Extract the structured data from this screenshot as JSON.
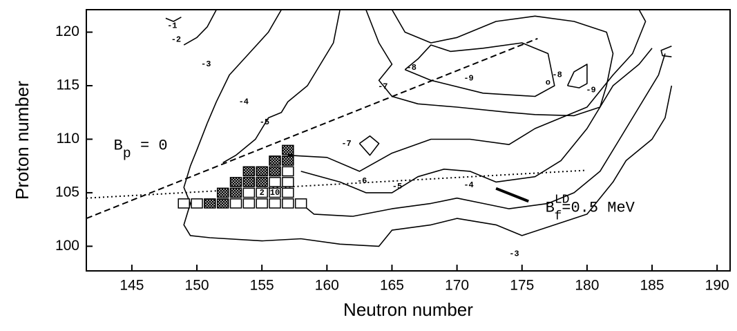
{
  "chart_data": {
    "type": "contour",
    "xlabel": "Neutron number",
    "ylabel": "Proton number",
    "xlim": [
      141.5,
      191
    ],
    "ylim": [
      97.7,
      122.1
    ],
    "xticks": [
      145,
      150,
      155,
      160,
      165,
      170,
      175,
      180,
      185,
      190
    ],
    "yticks": [
      100,
      105,
      110,
      115,
      120
    ],
    "contours": [
      {
        "x": [
          147.6,
          148.2,
          148.8
        ],
        "y": [
          121.3,
          121,
          121.4
        ]
      },
      {
        "x": [
          151.5,
          150.8,
          150,
          149
        ],
        "y": [
          122.1,
          120.5,
          119.5,
          118.8
        ]
      },
      {
        "x": [
          156.5,
          155.5,
          154,
          152.5,
          151.5,
          150.8
        ],
        "y": [
          122.1,
          120,
          118,
          116,
          113.5,
          111.5
        ]
      },
      {
        "x": [
          150.8,
          150,
          149.5,
          149,
          149.5,
          149,
          149.5,
          151,
          155,
          158,
          161,
          164,
          165,
          168,
          170,
          173,
          175,
          177,
          180,
          182,
          183,
          185,
          186,
          186.5
        ],
        "y": [
          111.5,
          109,
          107.5,
          105.5,
          104,
          102,
          101,
          100.8,
          100.5,
          100.7,
          100.2,
          100,
          101.5,
          102,
          102.6,
          102,
          101,
          101.8,
          103,
          106,
          108,
          110,
          112,
          115
        ]
      },
      {
        "x": [
          161,
          160.5,
          159.5,
          158.5,
          157,
          156.5,
          155.5,
          154.5,
          153,
          152
        ],
        "y": [
          122.1,
          119,
          117,
          115,
          113.5,
          112.5,
          112,
          110,
          108.5,
          107.8
        ]
      },
      {
        "x": [
          158,
          159,
          162,
          165,
          168,
          170,
          172,
          174,
          177,
          179,
          181,
          182.5,
          184,
          185.5,
          186
        ],
        "y": [
          104,
          103,
          102.8,
          103.5,
          104,
          104.5,
          104,
          103.5,
          104,
          105,
          107,
          110,
          113,
          116,
          118
        ]
      },
      {
        "x": [
          158,
          161,
          163,
          165,
          167,
          169,
          171,
          173,
          176,
          178,
          180,
          181,
          182,
          184,
          185
        ],
        "y": [
          107,
          106,
          105,
          105,
          106.5,
          107.2,
          107,
          106,
          106.5,
          108,
          111,
          113,
          115,
          117,
          118.5
        ]
      },
      {
        "x": [
          157,
          160,
          162.5,
          165,
          168,
          171,
          174,
          176,
          178,
          180,
          182,
          183.5,
          184.5,
          184
        ],
        "y": [
          108.5,
          108.3,
          107,
          108.7,
          110,
          110,
          109.5,
          111,
          112,
          113,
          116,
          118,
          121,
          122.1
        ]
      },
      {
        "x": [
          162.5,
          163.3,
          164,
          163.3,
          162.5
        ],
        "y": [
          109.6,
          110.3,
          109.6,
          108.5,
          109.6
        ]
      },
      {
        "x": [
          163,
          164,
          165,
          164,
          165,
          167,
          170,
          174,
          176,
          179,
          181,
          181.5,
          182,
          181.5,
          179,
          176,
          173,
          170,
          168,
          166,
          165
        ],
        "y": [
          122.1,
          119,
          117,
          115.5,
          114,
          113.3,
          113,
          112.5,
          112.3,
          112.2,
          113,
          115,
          118,
          120,
          121,
          121.5,
          121,
          119.5,
          119,
          120,
          122.1
        ]
      },
      {
        "x": [
          166,
          167,
          168,
          169.5,
          172,
          175,
          177,
          177.5,
          176,
          172,
          168,
          166
        ],
        "y": [
          116.5,
          117.5,
          118.8,
          118.2,
          118.5,
          119,
          118,
          115,
          114,
          114.3,
          115.5,
          116.5
        ]
      },
      {
        "x": [
          178.5,
          179,
          180,
          180,
          179.4,
          178.5
        ],
        "y": [
          115,
          116.3,
          117,
          115.2,
          114.8,
          115
        ]
      },
      {
        "x": [
          186.5,
          185.7,
          185.8,
          186.5
        ],
        "y": [
          118.7,
          118.3,
          117.8,
          117.7
        ]
      }
    ],
    "lines": [
      {
        "style": "dashed",
        "x": [
          141.5,
          176.2
        ],
        "y": [
          102.6,
          119.4
        ]
      },
      {
        "style": "dotted",
        "x": [
          141.5,
          180
        ],
        "y": [
          104.5,
          107.1
        ]
      },
      {
        "style": "thick",
        "x": [
          173,
          175.5
        ],
        "y": [
          105.4,
          104.2
        ]
      }
    ],
    "nuclei": [
      {
        "fill": "hatched",
        "x": [
          151,
          152,
          152,
          153,
          153,
          154,
          155,
          154,
          155,
          156,
          156,
          157,
          157
        ],
        "y": [
          104,
          104,
          105,
          105,
          106,
          106,
          106,
          107,
          107,
          107,
          108,
          108,
          109
        ]
      },
      {
        "fill": "open",
        "x": [
          149,
          150,
          153,
          154,
          155,
          156,
          157,
          158,
          154,
          155,
          156,
          157,
          156,
          157,
          157
        ],
        "y": [
          104,
          104,
          104,
          104,
          104,
          104,
          104,
          104,
          105,
          105,
          105,
          105,
          106,
          106,
          107
        ]
      }
    ],
    "annotations": [
      {
        "text": "-1",
        "x": 148.1,
        "y": 120.6
      },
      {
        "text": "-2",
        "x": 148.4,
        "y": 119.3
      },
      {
        "text": "-3",
        "x": 150.7,
        "y": 117
      },
      {
        "text": "-4",
        "x": 153.6,
        "y": 113.5
      },
      {
        "text": "-5",
        "x": 155.2,
        "y": 111.6
      },
      {
        "text": "-7",
        "x": 161.5,
        "y": 109.6
      },
      {
        "text": "-6",
        "x": 162.7,
        "y": 106.1
      },
      {
        "text": "-5",
        "x": 165.4,
        "y": 105.6
      },
      {
        "text": "-4",
        "x": 170.9,
        "y": 105.7
      },
      {
        "text": "-3",
        "x": 174.4,
        "y": 99.3
      },
      {
        "text": "-7",
        "x": 164.3,
        "y": 114.9
      },
      {
        "text": "-8",
        "x": 166.5,
        "y": 116.7
      },
      {
        "text": "-9",
        "x": 170.9,
        "y": 115.7
      },
      {
        "text": "o",
        "x": 177,
        "y": 115.3
      },
      {
        "text": "-8",
        "x": 177.7,
        "y": 116
      },
      {
        "text": "-9",
        "x": 180.3,
        "y": 114.6
      },
      {
        "text": "2",
        "x": 155,
        "y": 105
      },
      {
        "text": "10",
        "x": 156,
        "y": 105
      }
    ],
    "bp_label": {
      "main": "B",
      "sub": "p",
      "rest": " = 0",
      "x": 143.6,
      "y": 109.4
    },
    "bf_label": {
      "main": "B",
      "sup": "LD",
      "sub": "f",
      "rest": "=0.5 MeV",
      "x": 176.8,
      "y": 103.6
    }
  }
}
